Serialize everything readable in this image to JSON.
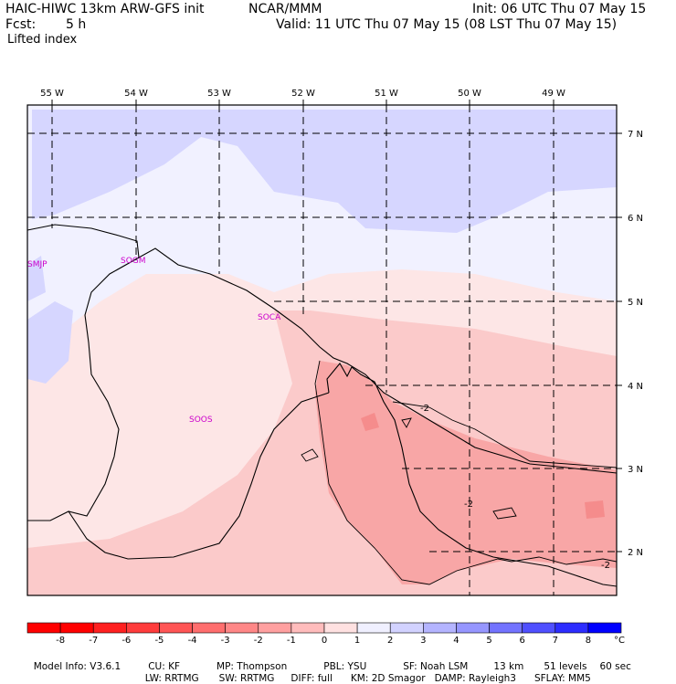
{
  "header": {
    "title_left": "HAIC-HIWC 13km ARW-GFS init",
    "org": "NCAR/MMM",
    "init": "Init: 06 UTC Thu 07 May 15",
    "fcst_label": "Fcst:",
    "fcst_value": "5 h",
    "valid": "Valid: 11 UTC Thu 07 May 15 (08 LST Thu 07 May 15)",
    "field": "Lifted index"
  },
  "map": {
    "lon_labels": [
      "55 W",
      "54 W",
      "53 W",
      "52 W",
      "51 W",
      "50 W",
      "49 W"
    ],
    "lat_labels": [
      "7 N",
      "6 N",
      "5 N",
      "4 N",
      "3 N",
      "2 N"
    ],
    "stations": [
      "SMJP",
      "SOGM",
      "SOCA",
      "SOOS"
    ],
    "contour_labels": [
      "-2",
      "-2",
      "-2"
    ]
  },
  "colorbar": {
    "labels": [
      "-8",
      "-7",
      "-6",
      "-5",
      "-4",
      "-3",
      "-2",
      "-1",
      "0",
      "1",
      "2",
      "3",
      "4",
      "5",
      "6",
      "7",
      "8"
    ],
    "unit": "°C",
    "colors": [
      "#ff0000",
      "#ff2020",
      "#ff3c3c",
      "#ff5555",
      "#ff6e6e",
      "#ff8787",
      "#ffa0a0",
      "#ffbcbc",
      "#ffe1e1",
      "#f0f0ff",
      "#d2d2ff",
      "#b4b4ff",
      "#9696ff",
      "#7373ff",
      "#5050ff",
      "#2d2dff",
      "#0000ff"
    ]
  },
  "footer": {
    "line1": [
      {
        "k": "Model Info: V3.6.1"
      },
      {
        "k": "CU: KF"
      },
      {
        "k": "MP: Thompson"
      },
      {
        "k": "PBL: YSU"
      },
      {
        "k": "SF: Noah LSM"
      },
      {
        "k": "13 km"
      },
      {
        "k": "51 levels"
      },
      {
        "k": "60 sec"
      }
    ],
    "line2": [
      {
        "k": "LW: RRTMG"
      },
      {
        "k": "SW: RRTMG"
      },
      {
        "k": "DIFF: full"
      },
      {
        "k": "KM: 2D Smagor"
      },
      {
        "k": "DAMP: Rayleigh3"
      },
      {
        "k": "SFLAY: MM5"
      }
    ]
  }
}
